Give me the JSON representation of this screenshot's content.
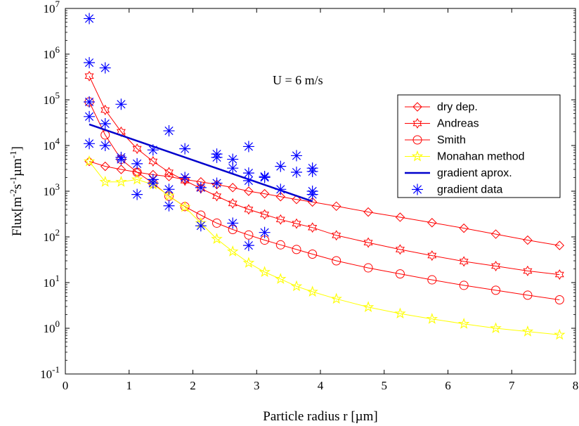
{
  "chart_data": {
    "type": "line",
    "title": "",
    "annotation": "U = 6 m/s",
    "xlabel": "Particle radius r [µm]",
    "ylabel": {
      "base": "Flux[m",
      "sup1": "-2",
      "mid1": "s",
      "sup2": "-1",
      "mid2": "µm",
      "sup3": "-1",
      "end": "]"
    },
    "xlim": [
      0,
      8
    ],
    "ylim_log10": [
      -1,
      7
    ],
    "yscale": "log",
    "grid": false,
    "legend_placement": "right",
    "xticks": [
      {
        "v": 0,
        "label": "0"
      },
      {
        "v": 1,
        "label": "1"
      },
      {
        "v": 2,
        "label": "2"
      },
      {
        "v": 3,
        "label": "3"
      },
      {
        "v": 4,
        "label": "4"
      },
      {
        "v": 5,
        "label": "5"
      },
      {
        "v": 6,
        "label": "6"
      },
      {
        "v": 7,
        "label": "7"
      },
      {
        "v": 8,
        "label": "8"
      }
    ],
    "yticks": [
      {
        "exp": -1,
        "base": "10",
        "sup": "-1"
      },
      {
        "exp": 0,
        "base": "10",
        "sup": "0"
      },
      {
        "exp": 1,
        "base": "10",
        "sup": "1"
      },
      {
        "exp": 2,
        "base": "10",
        "sup": "2"
      },
      {
        "exp": 3,
        "base": "10",
        "sup": "3"
      },
      {
        "exp": 4,
        "base": "10",
        "sup": "4"
      },
      {
        "exp": 5,
        "base": "10",
        "sup": "5"
      },
      {
        "exp": 6,
        "base": "10",
        "sup": "6"
      },
      {
        "exp": 7,
        "base": "10",
        "sup": "7"
      }
    ],
    "series": [
      {
        "name": "dry dep.",
        "color": "#ff0000",
        "marker": "diamond",
        "line": true,
        "x": [
          0.375,
          0.625,
          0.875,
          1.125,
          1.375,
          1.625,
          1.875,
          2.125,
          2.375,
          2.625,
          2.875,
          3.125,
          3.375,
          3.625,
          3.875,
          4.25,
          4.75,
          5.25,
          5.75,
          6.25,
          6.75,
          7.25,
          7.75
        ],
        "y": [
          4500,
          3500,
          3000,
          2600,
          2300,
          2100,
          1800,
          1600,
          1400,
          1200,
          1000,
          880,
          760,
          660,
          580,
          470,
          350,
          270,
          205,
          155,
          115,
          85,
          65
        ]
      },
      {
        "name": "Andreas",
        "color": "#ff0000",
        "marker": "hexagram",
        "line": true,
        "x": [
          0.375,
          0.625,
          0.875,
          1.125,
          1.375,
          1.625,
          1.875,
          2.125,
          2.375,
          2.625,
          2.875,
          3.125,
          3.375,
          3.625,
          3.875,
          4.25,
          4.75,
          5.25,
          5.75,
          6.25,
          6.75,
          7.25,
          7.75
        ],
        "y": [
          330000,
          60000,
          20000,
          8500,
          4500,
          2600,
          1700,
          1150,
          780,
          540,
          400,
          310,
          240,
          195,
          160,
          108,
          75,
          53,
          39,
          29,
          23,
          18,
          15
        ]
      },
      {
        "name": "Smith",
        "color": "#ff0000",
        "marker": "circle",
        "line": true,
        "x": [
          0.375,
          0.625,
          0.875,
          1.125,
          1.375,
          1.625,
          1.875,
          2.125,
          2.375,
          2.625,
          2.875,
          3.125,
          3.375,
          3.625,
          3.875,
          4.25,
          4.75,
          5.25,
          5.75,
          6.25,
          6.75,
          7.25,
          7.75
        ],
        "y": [
          90000,
          17000,
          5000,
          2600,
          1500,
          780,
          460,
          300,
          200,
          145,
          110,
          85,
          67,
          53,
          42,
          30,
          21,
          15.5,
          11.5,
          8.7,
          6.8,
          5.3,
          4.2
        ]
      },
      {
        "name": "Monahan method",
        "color": "#ffff00",
        "marker": "pentagram",
        "line": true,
        "x": [
          0.375,
          0.625,
          0.875,
          1.125,
          1.375,
          1.625,
          1.875,
          2.125,
          2.375,
          2.625,
          2.875,
          3.125,
          3.375,
          3.625,
          3.875,
          4.25,
          4.75,
          5.25,
          5.75,
          6.25,
          6.75,
          7.25,
          7.75
        ],
        "y": [
          4500,
          1600,
          1600,
          1800,
          1400,
          800,
          450,
          200,
          90,
          48,
          27,
          17,
          12,
          8.3,
          6.3,
          4.4,
          2.9,
          2.1,
          1.6,
          1.25,
          1.0,
          0.85,
          0.72
        ]
      },
      {
        "name": "gradient aprox.",
        "color": "#0000cc",
        "marker": "none",
        "line": true,
        "thick": true,
        "x": [
          0.375,
          3.875
        ],
        "y": [
          29000,
          600
        ]
      },
      {
        "name": "gradient data",
        "color": "#0000ff",
        "marker": "asterisk",
        "line": false,
        "x": [
          0.375,
          0.375,
          0.375,
          0.375,
          0.375,
          0.625,
          0.625,
          0.625,
          0.875,
          0.875,
          0.875,
          1.125,
          1.125,
          1.375,
          1.375,
          1.375,
          1.625,
          1.625,
          1.625,
          1.875,
          1.875,
          2.125,
          2.125,
          2.375,
          2.375,
          2.375,
          2.625,
          2.625,
          2.625,
          2.875,
          2.875,
          2.875,
          2.875,
          3.125,
          3.125,
          3.125,
          3.375,
          3.375,
          3.625,
          3.625,
          3.875,
          3.875,
          3.875,
          3.875
        ],
        "y": [
          6000000,
          650000,
          90000,
          43000,
          11000,
          500000,
          30000,
          10000,
          80000,
          5500,
          5000,
          4000,
          850,
          8000,
          1800,
          1500,
          21000,
          1100,
          480,
          8500,
          2000,
          1200,
          175,
          6500,
          5500,
          1500,
          5000,
          3200,
          200,
          9500,
          2500,
          1700,
          65,
          2100,
          2000,
          125,
          3500,
          1100,
          6000,
          2600,
          3200,
          2700,
          1000,
          850
        ]
      }
    ]
  }
}
